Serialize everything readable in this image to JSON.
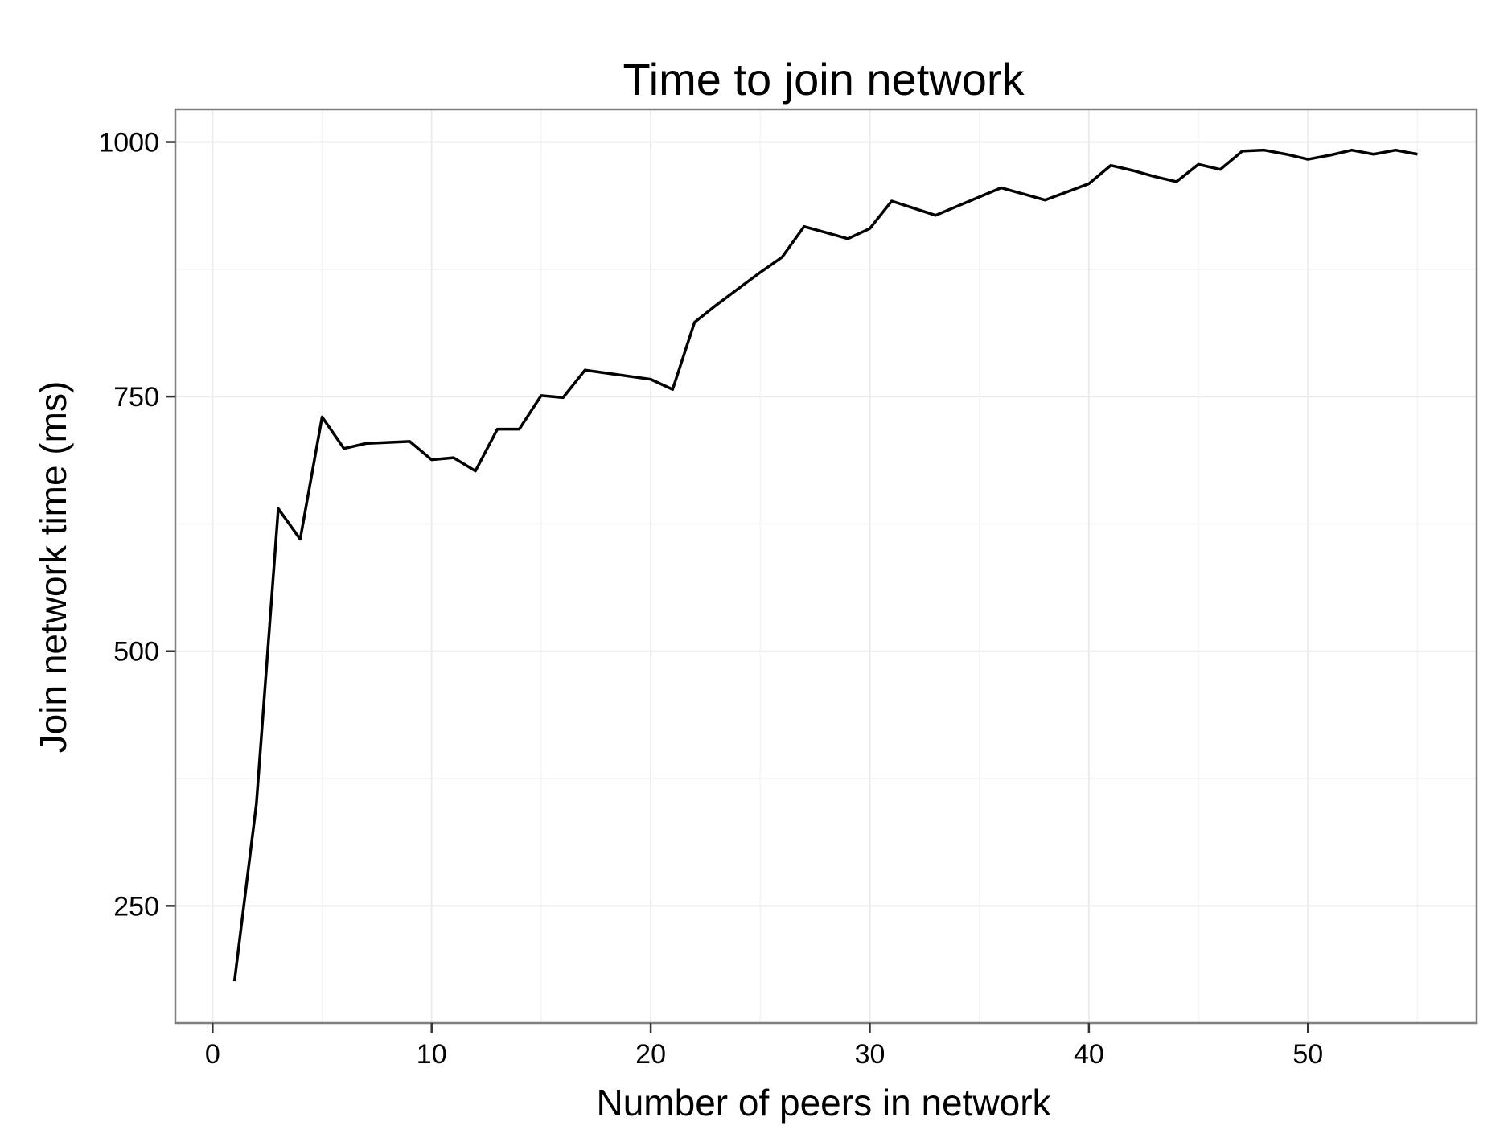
{
  "chart_data": {
    "type": "line",
    "title": "Time to join network",
    "xlabel": "Number of peers in network",
    "ylabel": "Join network time (ms)",
    "xlim": [
      -1.7,
      57.7
    ],
    "ylim": [
      135,
      1032
    ],
    "x_ticks": [
      0,
      10,
      20,
      30,
      40,
      50
    ],
    "y_ticks": [
      250,
      500,
      750,
      1000
    ],
    "grid": true,
    "legend": "none",
    "series": [
      {
        "color": "#000000",
        "x": [
          1,
          2,
          3,
          4,
          5,
          6,
          7,
          8,
          9,
          10,
          11,
          12,
          13,
          14,
          15,
          16,
          17,
          18,
          19,
          20,
          21,
          22,
          23,
          24,
          25,
          26,
          27,
          28,
          29,
          30,
          31,
          32,
          33,
          34,
          35,
          36,
          37,
          38,
          39,
          40,
          41,
          42,
          43,
          44,
          45,
          46,
          47,
          48,
          49,
          50,
          51,
          52,
          53,
          54,
          55
        ],
        "y": [
          176,
          350,
          640,
          610,
          730,
          699,
          704,
          705,
          706,
          688,
          690,
          677,
          718,
          718,
          751,
          749,
          776,
          773,
          770,
          767,
          757,
          823,
          840,
          856,
          872,
          887,
          917,
          911,
          905,
          915,
          942,
          935,
          928,
          937,
          946,
          955,
          949,
          943,
          951,
          959,
          977,
          972,
          966,
          961,
          978,
          973,
          991,
          992,
          988,
          983,
          987,
          992,
          988,
          992,
          988
        ]
      }
    ]
  }
}
